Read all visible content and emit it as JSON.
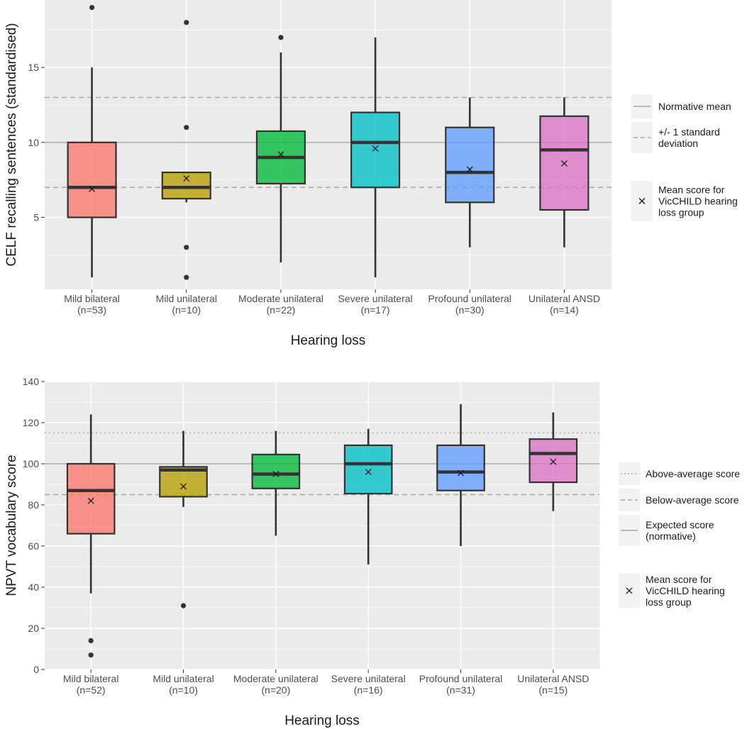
{
  "chart_data": [
    {
      "type": "box",
      "ylabel": "CELF recalling sentences (standardised)",
      "xlabel": "Hearing loss",
      "ylim": [
        0.2,
        19.5
      ],
      "yticks": [
        5,
        10,
        15
      ],
      "ytick_labels": [
        "5",
        "10",
        "15"
      ],
      "ref_lines": [
        {
          "value": 10,
          "style": "solid"
        },
        {
          "value": 13,
          "style": "dashed"
        },
        {
          "value": 7,
          "style": "dashed"
        }
      ],
      "categories": [
        {
          "name": "Mild bilateral",
          "n": "(n=53)",
          "color": "#F8766D",
          "min": 1,
          "q1": 5,
          "median": 7,
          "q3": 10,
          "max": 15,
          "mean": 6.9,
          "outliers": [
            19
          ]
        },
        {
          "name": "Mild unilateral",
          "n": "(n=10)",
          "color": "#B79F00",
          "min": 6,
          "q1": 6.25,
          "median": 7,
          "q3": 8,
          "max": 8,
          "mean": 7.6,
          "outliers": [
            18,
            11,
            3,
            1
          ]
        },
        {
          "name": "Moderate unilateral",
          "n": "(n=22)",
          "color": "#00BA38",
          "min": 2,
          "q1": 7.25,
          "median": 9,
          "q3": 10.75,
          "max": 16,
          "mean": 9.2,
          "outliers": [
            17
          ]
        },
        {
          "name": "Severe unilateral",
          "n": "(n=17)",
          "color": "#00BFC4",
          "min": 1,
          "q1": 7,
          "median": 10,
          "q3": 12,
          "max": 17,
          "mean": 9.6,
          "outliers": []
        },
        {
          "name": "Profound unilateral",
          "n": "(n=30)",
          "color": "#619CFF",
          "min": 3,
          "q1": 6,
          "median": 8,
          "q3": 11,
          "max": 13,
          "mean": 8.2,
          "outliers": []
        },
        {
          "name": "Unilateral ANSD",
          "n": "(n=14)",
          "color": "#DB72C4",
          "min": 3,
          "q1": 5.5,
          "median": 9.5,
          "q3": 11.75,
          "max": 13,
          "mean": 8.6,
          "outliers": []
        }
      ],
      "legend": [
        {
          "key": "solid",
          "lines": [
            "Normative mean"
          ]
        },
        {
          "key": "dashed",
          "lines": [
            "+/- 1 standard",
            "deviation"
          ]
        },
        {
          "key": "mean",
          "lines": [
            "Mean score for",
            "VicCHILD hearing",
            "loss group"
          ]
        }
      ]
    },
    {
      "type": "box",
      "ylabel": "NPVT vocabulary score",
      "xlabel": "Hearing loss",
      "ylim": [
        0,
        140
      ],
      "yticks": [
        0,
        20,
        40,
        60,
        80,
        100,
        120,
        140
      ],
      "ytick_labels": [
        "0",
        "20",
        "40",
        "60",
        "80",
        "100",
        "120",
        "140"
      ],
      "ref_lines": [
        {
          "value": 100,
          "style": "solid"
        },
        {
          "value": 115,
          "style": "dotted"
        },
        {
          "value": 85,
          "style": "dashed"
        }
      ],
      "categories": [
        {
          "name": "Mild bilateral",
          "n": "(n=52)",
          "color": "#F8766D",
          "min": 37,
          "q1": 66,
          "median": 87,
          "q3": 100,
          "max": 124,
          "mean": 82,
          "outliers": [
            14,
            7
          ]
        },
        {
          "name": "Mild unilateral",
          "n": "(n=10)",
          "color": "#B79F00",
          "min": 79,
          "q1": 84,
          "median": 97,
          "q3": 98.5,
          "max": 116,
          "mean": 89,
          "outliers": [
            31
          ]
        },
        {
          "name": "Moderate unilateral",
          "n": "(n=20)",
          "color": "#00BA38",
          "min": 65,
          "q1": 88,
          "median": 95,
          "q3": 104.5,
          "max": 116,
          "mean": 95,
          "outliers": []
        },
        {
          "name": "Severe unilateral",
          "n": "(n=16)",
          "color": "#00BFC4",
          "min": 51,
          "q1": 85.5,
          "median": 100,
          "q3": 109,
          "max": 117,
          "mean": 96,
          "outliers": []
        },
        {
          "name": "Profound unilateral",
          "n": "(n=31)",
          "color": "#619CFF",
          "min": 60,
          "q1": 87,
          "median": 96,
          "q3": 109,
          "max": 129,
          "mean": 95.5,
          "outliers": []
        },
        {
          "name": "Unilateral ANSD",
          "n": "(n=15)",
          "color": "#DB72C4",
          "min": 77,
          "q1": 91,
          "median": 105,
          "q3": 112,
          "max": 125,
          "mean": 101,
          "outliers": []
        }
      ],
      "legend": [
        {
          "key": "dotted",
          "lines": [
            "Above-average score"
          ]
        },
        {
          "key": "dashed",
          "lines": [
            "Below-average score"
          ]
        },
        {
          "key": "solid",
          "lines": [
            "Expected score",
            "(normative)"
          ]
        },
        {
          "key": "mean",
          "lines": [
            "Mean score for",
            "VicCHILD hearing",
            "loss group"
          ]
        }
      ]
    }
  ]
}
